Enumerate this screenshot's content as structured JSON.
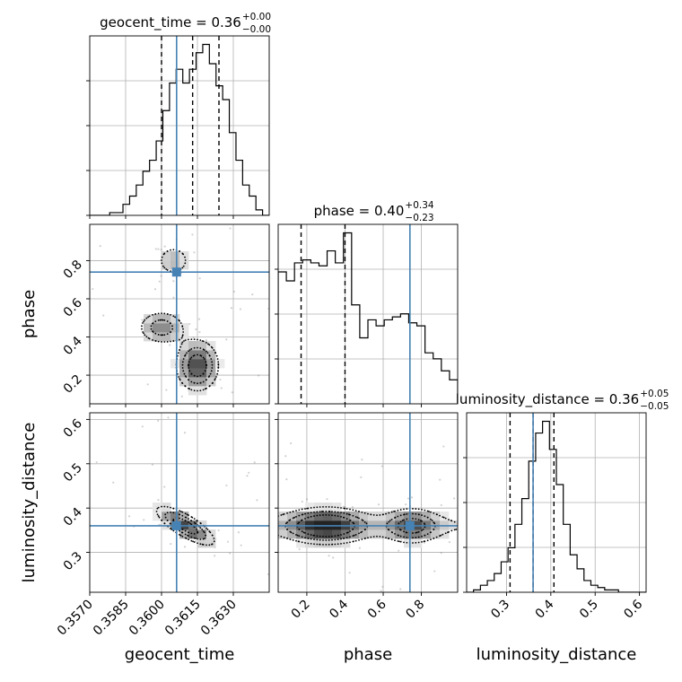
{
  "colors": {
    "truth": "#4682b4",
    "grid": "#b0b0b0",
    "hist": "#000000",
    "scatter": "#7f7f7f"
  },
  "chart_data": {
    "type": "corner",
    "parameters": [
      "geocent_time",
      "phase",
      "luminosity_distance"
    ],
    "truths": {
      "geocent_time": 0.36063,
      "phase": 0.74,
      "luminosity_distance": 0.36
    },
    "ranges": {
      "geocent_time": [
        0.357,
        0.3645
      ],
      "phase": [
        0.05,
        0.99
      ],
      "luminosity_distance": [
        0.21,
        0.615
      ]
    },
    "titles": [
      {
        "param": "geocent_time",
        "label": "geocent_time",
        "median": "0.36",
        "plus": "+0.00",
        "minus": "−0.00"
      },
      {
        "param": "phase",
        "label": "phase",
        "median": "0.40",
        "plus": "+0.34",
        "minus": "−0.23"
      },
      {
        "param": "luminosity_distance",
        "label": "luminosity_distance",
        "median": "0.36",
        "plus": "+0.05",
        "minus": "−0.05"
      }
    ],
    "quantiles": {
      "geocent_time": [
        0.36,
        0.3613,
        0.3624
      ],
      "phase": [
        0.17,
        0.4,
        0.74
      ],
      "luminosity_distance": [
        0.308,
        0.36,
        0.407
      ]
    },
    "ticks": {
      "geocent_time": [
        "0.3570",
        "0.3585",
        "0.3600",
        "0.3615",
        "0.3630"
      ],
      "phase": [
        "0.2",
        "0.4",
        "0.6",
        "0.8"
      ],
      "luminosity_distance": [
        "0.3",
        "0.4",
        "0.5",
        "0.6"
      ]
    },
    "histograms": {
      "geocent_time": [
        0,
        0,
        0,
        1,
        1,
        4,
        7,
        11,
        16,
        20,
        27,
        38,
        48,
        53,
        48,
        53,
        59,
        62,
        55,
        47,
        42,
        30,
        20,
        11,
        7,
        2,
        0
      ],
      "phase": [
        44,
        41,
        47,
        48,
        47,
        46,
        51,
        47,
        57,
        33,
        22,
        28,
        26,
        28,
        29,
        30,
        27,
        26,
        17,
        15,
        11,
        8
      ],
      "luminosity_distance": [
        0,
        1,
        3,
        5,
        8,
        13,
        19,
        29,
        40,
        56,
        68,
        73,
        61,
        46,
        29,
        16,
        10,
        5,
        3,
        2,
        1,
        1,
        0,
        0,
        0,
        0
      ]
    },
    "grid": true,
    "xlabel_bottom": [
      "geocent_time",
      "phase",
      "luminosity_distance"
    ],
    "ylabel_left": [
      "phase",
      "luminosity_distance"
    ]
  }
}
